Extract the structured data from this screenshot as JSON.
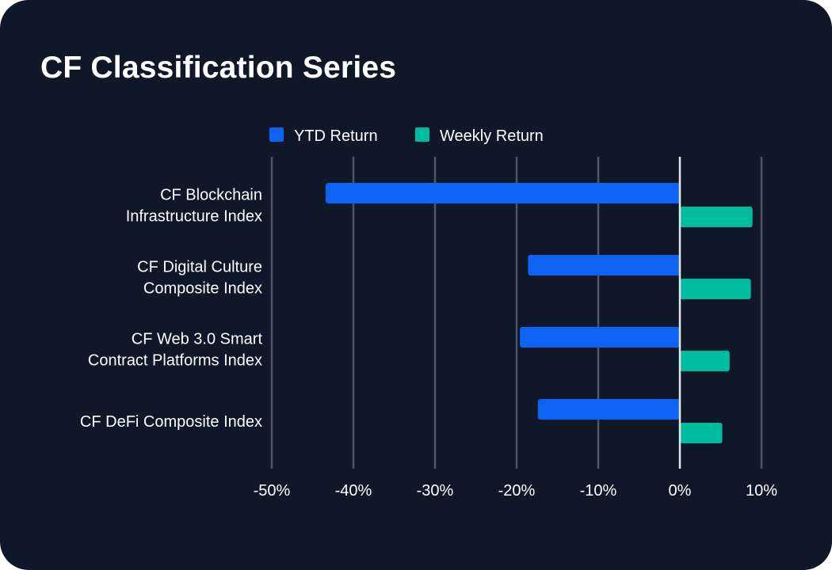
{
  "colors": {
    "background": "#0f1829",
    "ytd": "#0e63f4",
    "weekly": "#00bc9f",
    "grid": "#4b5563",
    "zero_line": "#e5e7eb"
  },
  "chart_data": {
    "type": "bar",
    "orientation": "horizontal",
    "title": "CF Classification Series",
    "categories": [
      [
        "CF Blockchain",
        "Infrastructure Index"
      ],
      [
        "CF Digital Culture",
        "Composite Index"
      ],
      [
        "CF Web 3.0 Smart",
        "Contract Platforms Index"
      ],
      [
        "CF DeFi Composite Index"
      ]
    ],
    "series": [
      {
        "name": "YTD Return",
        "color_key": "ytd",
        "values": [
          -43.4,
          -18.6,
          -19.6,
          -17.4
        ]
      },
      {
        "name": "Weekly Return",
        "color_key": "weekly",
        "values": [
          8.9,
          8.7,
          6.1,
          5.2
        ]
      }
    ],
    "xlim": [
      -50,
      10
    ],
    "xticks": [
      -50,
      -40,
      -30,
      -20,
      -10,
      0,
      10
    ],
    "xtick_labels": [
      "-50%",
      "-40%",
      "-30%",
      "-20%",
      "-10%",
      "0%",
      "10%"
    ],
    "legend_position": "top-center",
    "grid": true
  }
}
